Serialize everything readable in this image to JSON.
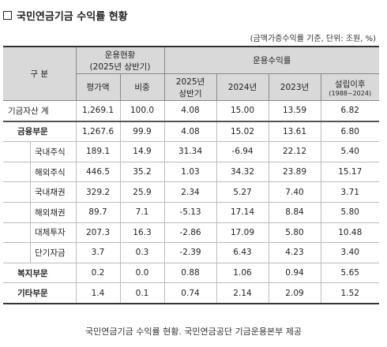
{
  "title": "국민연금기금 수익률 현황",
  "unit_note": "(금액가증수익률 기준, 단위: 조원, %)",
  "header": {
    "gubun": "구 분",
    "holdings_group": "운용현황",
    "holdings_period": "(2025년 상반기)",
    "returns_group": "운용수익률",
    "col_amount": "평가액",
    "col_share": "비중",
    "col_h1_2025_line1": "2025년",
    "col_h1_2025_line2": "상반기",
    "col_2024": "2024년",
    "col_2023": "2023년",
    "col_since_line1": "설립이후",
    "col_since_line2": "(1988~2024)"
  },
  "rows": [
    {
      "label": "기금자산 계",
      "amount": "1,269.1",
      "share": "100.0",
      "r2025h1": "4.08",
      "r2024": "15.00",
      "r2023": "13.59",
      "since": "6.82"
    },
    {
      "label": "금융부문",
      "amount": "1,267.6",
      "share": "99.9",
      "r2025h1": "4.08",
      "r2024": "15.02",
      "r2023": "13.61",
      "since": "6.80"
    },
    {
      "label": "국내주식",
      "amount": "189.1",
      "share": "14.9",
      "r2025h1": "31.34",
      "r2024": "-6.94",
      "r2023": "22.12",
      "since": "5.40"
    },
    {
      "label": "해외주식",
      "amount": "446.5",
      "share": "35.2",
      "r2025h1": "1.03",
      "r2024": "34.32",
      "r2023": "23.89",
      "since": "15.17"
    },
    {
      "label": "국내채권",
      "amount": "329.2",
      "share": "25.9",
      "r2025h1": "2.34",
      "r2024": "5.27",
      "r2023": "7.40",
      "since": "3.71"
    },
    {
      "label": "해외채권",
      "amount": "89.7",
      "share": "7.1",
      "r2025h1": "-5.13",
      "r2024": "17.14",
      "r2023": "8.84",
      "since": "5.80"
    },
    {
      "label": "대체투자",
      "amount": "207.3",
      "share": "16.3",
      "r2025h1": "-2.86",
      "r2024": "17.09",
      "r2023": "5.80",
      "since": "10.48"
    },
    {
      "label": "단기자금",
      "amount": "3.7",
      "share": "0.3",
      "r2025h1": "-2.39",
      "r2024": "6.43",
      "r2023": "4.23",
      "since": "3.40"
    },
    {
      "label": "복지부문",
      "amount": "0.2",
      "share": "0.0",
      "r2025h1": "0.88",
      "r2024": "1.06",
      "r2023": "0.94",
      "since": "5.65"
    },
    {
      "label": "기타부문",
      "amount": "1.4",
      "share": "0.1",
      "r2025h1": "0.74",
      "r2024": "2.14",
      "r2023": "2.09",
      "since": "1.52"
    }
  ],
  "caption": "국민연금기금 수익률 현황. 국민연금공단 기금운용본부 제공"
}
